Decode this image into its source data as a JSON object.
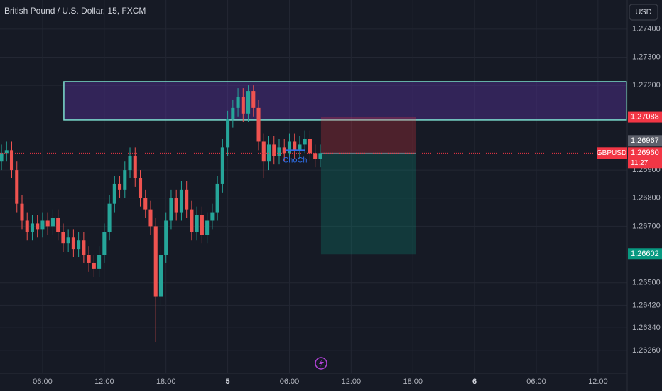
{
  "chart_data": {
    "type": "candlestick",
    "title": "British Pound / U.S. Dollar, 15, FXCM",
    "currency": "USD",
    "x": [
      2,
      2.5,
      3,
      3.5,
      4,
      4.5,
      5,
      5.5,
      6,
      6.5,
      7,
      7.5,
      8,
      8.5,
      9,
      9.5,
      10,
      10.5,
      11,
      11.5,
      12,
      12.5,
      13,
      13.5,
      14,
      14.5,
      15,
      15.5,
      16,
      16.5,
      17,
      17.5,
      18,
      18.5,
      19,
      19.5,
      20,
      20.5,
      21,
      21.5,
      22,
      22.5,
      23,
      23.5,
      24,
      24.5,
      25,
      25.5,
      26,
      26.5,
      27,
      27.5,
      28,
      28.5,
      29,
      29.5,
      30,
      30.5,
      31,
      31.5,
      32,
      32.5,
      33
    ],
    "open": [
      1.2693,
      1.2696,
      1.2697,
      1.269,
      1.2678,
      1.2672,
      1.2668,
      1.2671,
      1.2669,
      1.2672,
      1.267,
      1.2673,
      1.2668,
      1.2664,
      1.2666,
      1.2662,
      1.2665,
      1.266,
      1.2657,
      1.2655,
      1.266,
      1.2668,
      1.2678,
      1.2685,
      1.2683,
      1.269,
      1.2695,
      1.2687,
      1.268,
      1.2676,
      1.267,
      1.2645,
      1.266,
      1.2672,
      1.268,
      1.2675,
      1.2683,
      1.2676,
      1.2668,
      1.2674,
      1.2667,
      1.2672,
      1.2675,
      1.2685,
      1.2698,
      1.2708,
      1.2712,
      1.2716,
      1.271,
      1.2718,
      1.2712,
      1.27,
      1.2693,
      1.2699,
      1.2695,
      1.2698,
      1.2696,
      1.27,
      1.2697,
      1.2699,
      1.2701,
      1.2696,
      1.2694
    ],
    "high": [
      1.2699,
      1.27,
      1.27,
      1.2693,
      1.2681,
      1.2675,
      1.2674,
      1.2674,
      1.2675,
      1.2675,
      1.2676,
      1.2676,
      1.2671,
      1.2669,
      1.2669,
      1.2668,
      1.2668,
      1.2663,
      1.266,
      1.2663,
      1.2671,
      1.2681,
      1.2688,
      1.2688,
      1.2693,
      1.2698,
      1.2698,
      1.269,
      1.2683,
      1.2679,
      1.2673,
      1.2663,
      1.2675,
      1.2683,
      1.2683,
      1.2686,
      1.2686,
      1.2679,
      1.2677,
      1.2677,
      1.2675,
      1.2678,
      1.2688,
      1.2701,
      1.2711,
      1.2715,
      1.2719,
      1.2719,
      1.272,
      1.272,
      1.2715,
      1.2703,
      1.2702,
      1.2702,
      1.2701,
      1.2701,
      1.2703,
      1.2703,
      1.2702,
      1.2704,
      1.2704,
      1.2699,
      1.2699
    ],
    "low": [
      1.269,
      1.2693,
      1.2687,
      1.2675,
      1.2669,
      1.2665,
      1.2665,
      1.2666,
      1.2666,
      1.2667,
      1.2667,
      1.2665,
      1.2661,
      1.2661,
      1.2659,
      1.2659,
      1.2657,
      1.2654,
      1.2652,
      1.2652,
      1.2657,
      1.2665,
      1.2675,
      1.268,
      1.268,
      1.2687,
      1.2684,
      1.2677,
      1.2673,
      1.2667,
      1.2629,
      1.2642,
      1.2657,
      1.2669,
      1.2672,
      1.2672,
      1.2673,
      1.2665,
      1.2665,
      1.2664,
      1.2664,
      1.2669,
      1.2672,
      1.2682,
      1.2695,
      1.2705,
      1.2709,
      1.2707,
      1.2707,
      1.2709,
      1.2697,
      1.2687,
      1.269,
      1.2692,
      1.2692,
      1.2693,
      1.2693,
      1.2694,
      1.2694,
      1.2696,
      1.2693,
      1.2691,
      1.2691
    ],
    "close": [
      1.2696,
      1.2697,
      1.269,
      1.2678,
      1.2672,
      1.2668,
      1.2671,
      1.2669,
      1.2672,
      1.267,
      1.2673,
      1.2668,
      1.2664,
      1.2666,
      1.2662,
      1.2665,
      1.266,
      1.2657,
      1.2655,
      1.266,
      1.2668,
      1.2678,
      1.2685,
      1.2683,
      1.269,
      1.2695,
      1.2687,
      1.268,
      1.2676,
      1.267,
      1.2645,
      1.266,
      1.2672,
      1.268,
      1.2675,
      1.2683,
      1.2676,
      1.2668,
      1.2674,
      1.2667,
      1.2672,
      1.2675,
      1.2685,
      1.2698,
      1.2708,
      1.2712,
      1.2716,
      1.271,
      1.2718,
      1.2712,
      1.27,
      1.2693,
      1.2699,
      1.2695,
      1.2698,
      1.2696,
      1.27,
      1.2697,
      1.2699,
      1.2701,
      1.2696,
      1.2694,
      1.2696
    ],
    "up_color": "#26a69a",
    "down_color": "#ef5350",
    "xlim": [
      1.86,
      62.84
    ],
    "ylim": [
      1.26179,
      1.27503
    ],
    "xticks": [
      {
        "value": 6,
        "label": "06:00"
      },
      {
        "value": 12,
        "label": "12:00"
      },
      {
        "value": 18,
        "label": "18:00"
      },
      {
        "value": 24,
        "label": "5"
      },
      {
        "value": 30,
        "label": "06:00"
      },
      {
        "value": 36,
        "label": "12:00"
      },
      {
        "value": 42,
        "label": "18:00"
      },
      {
        "value": 48,
        "label": "6"
      },
      {
        "value": 54,
        "label": "06:00"
      },
      {
        "value": 60,
        "label": "12:00"
      }
    ],
    "yticks": [
      {
        "value": 1.274,
        "label": "1.27400"
      },
      {
        "value": 1.273,
        "label": "1.27300"
      },
      {
        "value": 1.272,
        "label": "1.27200"
      },
      {
        "value": 1.269,
        "label": "1.26900"
      },
      {
        "value": 1.268,
        "label": "1.26800"
      },
      {
        "value": 1.267,
        "label": "1.26700"
      },
      {
        "value": 1.265,
        "label": "1.26500"
      },
      {
        "value": 1.2642,
        "label": "1.26420"
      },
      {
        "value": 1.2634,
        "label": "1.26340"
      },
      {
        "value": 1.2626,
        "label": "1.26260"
      }
    ],
    "grid": true,
    "zone": {
      "start": 8.07,
      "top": 1.27213,
      "bottom": 1.27077,
      "color": "#7ddfd0"
    },
    "position": {
      "start": 33.07,
      "end": 42.26,
      "stop": 1.27088,
      "entry": 1.2696,
      "target": 1.26602
    },
    "choch": {
      "label": "ChoCh",
      "start": 29.6,
      "end": 31.5,
      "price": 1.2697,
      "color": "#2f6ee8"
    },
    "price_labels": [
      {
        "value": 1.27088,
        "label": "1.27088",
        "color": "#f23645"
      },
      {
        "value": 1.2696,
        "label": "1.26960",
        "symbol": "GBPUSD",
        "countdown": "11:27",
        "color": "#f23645"
      },
      {
        "value": 1.26967,
        "label": "1.26967",
        "color": "#5d606b"
      },
      {
        "value": 1.26602,
        "label": "1.26602",
        "color": "#089981"
      }
    ]
  }
}
